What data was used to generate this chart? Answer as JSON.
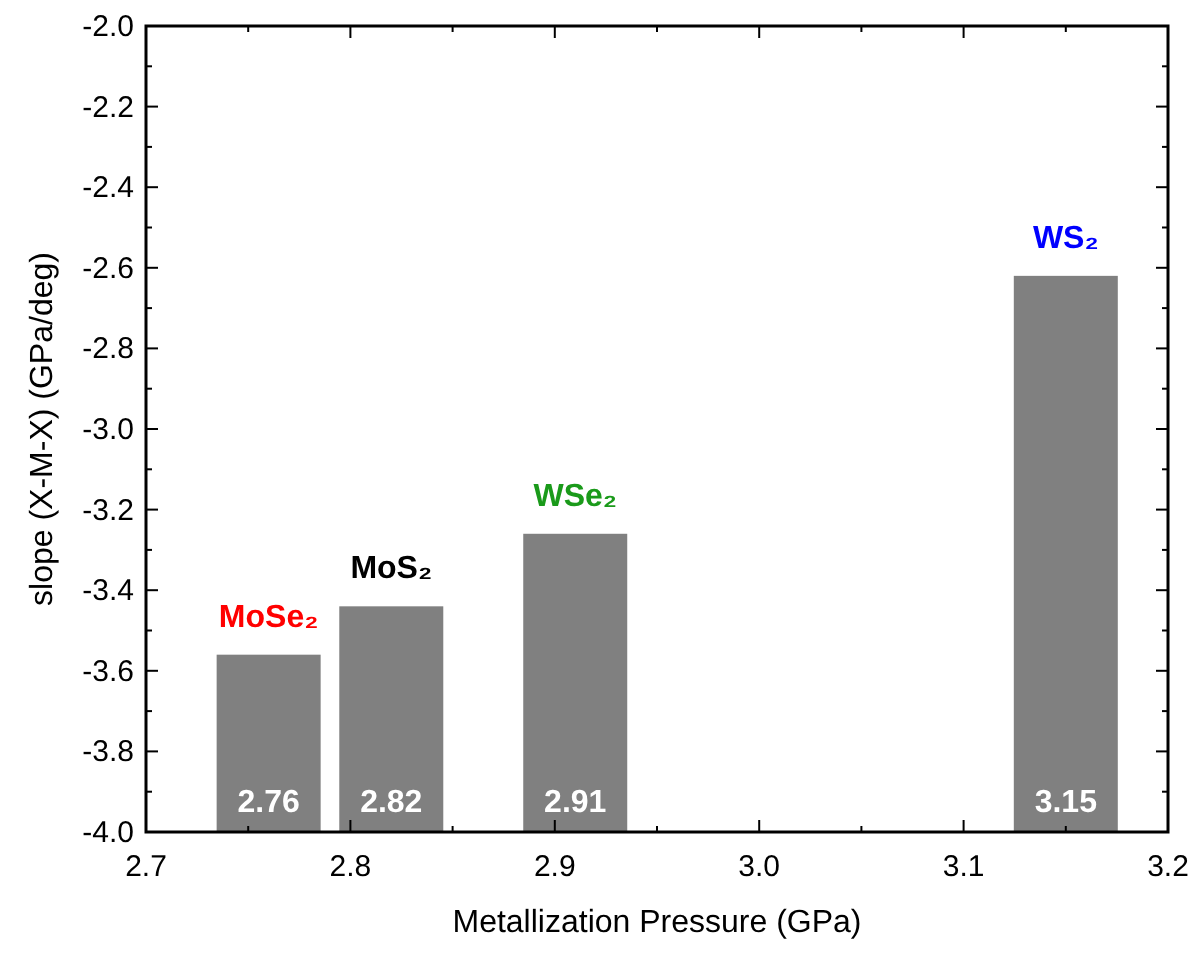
{
  "chart_data": {
    "type": "bar",
    "xlabel": "Metallization Pressure (GPa)",
    "ylabel": "slope (X-M-X) (GPa/deg)",
    "x": [
      2.76,
      2.82,
      2.91,
      3.15
    ],
    "base": [
      -4.0,
      -4.0,
      -4.0,
      -4.0
    ],
    "values": [
      0.44,
      0.56,
      0.74,
      1.38
    ],
    "color": "#808080",
    "xlim": [
      2.7,
      3.2
    ],
    "xticks": [
      {
        "value": 2.7,
        "label": "2.7"
      },
      {
        "value": 2.8,
        "label": "2.8"
      },
      {
        "value": 2.9,
        "label": "2.9"
      },
      {
        "value": 3.0,
        "label": "3.0"
      },
      {
        "value": 3.1,
        "label": "3.1"
      },
      {
        "value": 3.2,
        "label": "3.2"
      }
    ],
    "ylim": [
      -4.0,
      -2.0
    ],
    "yticks": [
      {
        "value": -4.0,
        "label": "-4.0"
      },
      {
        "value": -3.8,
        "label": "-3.8"
      },
      {
        "value": -3.6,
        "label": "-3.6"
      },
      {
        "value": -3.4,
        "label": "-3.4"
      },
      {
        "value": -3.2,
        "label": "-3.2"
      },
      {
        "value": -3.0,
        "label": "-3.0"
      },
      {
        "value": -2.8,
        "label": "-2.8"
      },
      {
        "value": -2.6,
        "label": "-2.6"
      },
      {
        "value": -2.4,
        "label": "-2.4"
      },
      {
        "value": -2.2,
        "label": "-2.2"
      },
      {
        "value": -2.0,
        "label": "-2.0"
      }
    ],
    "annotations": [
      {
        "text": "MoSe₂",
        "x": 2.76,
        "y": -3.56
      },
      {
        "text": "MoS₂",
        "x": 2.82,
        "y": -3.44
      },
      {
        "text": "WSe₂",
        "x": 2.91,
        "y": -3.26
      },
      {
        "text": "WS₂",
        "x": 3.15,
        "y": -2.62
      },
      {
        "text": "2.76",
        "x": 2.76,
        "y": -4.0
      },
      {
        "text": "2.82",
        "x": 2.82,
        "y": -4.0
      },
      {
        "text": "2.91",
        "x": 2.91,
        "y": -4.0
      },
      {
        "text": "3.15",
        "x": 3.15,
        "y": -4.0
      }
    ]
  }
}
